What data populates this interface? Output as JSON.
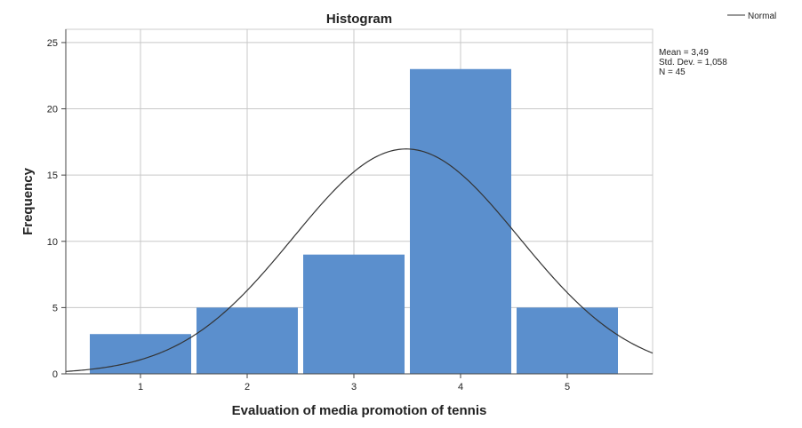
{
  "chart_data": {
    "type": "bar",
    "title": "Histogram",
    "xlabel": "Evaluation of media promotion of tennis",
    "ylabel": "Frequency",
    "categories": [
      "1",
      "2",
      "3",
      "4",
      "5"
    ],
    "x": [
      1,
      2,
      3,
      4,
      5
    ],
    "values": [
      3,
      5,
      9,
      23,
      5
    ],
    "xlim": [
      0.3,
      5.8
    ],
    "ylim": [
      0,
      26
    ],
    "yticks": [
      "0",
      "5",
      "10",
      "15",
      "20",
      "25"
    ],
    "ytick_values": [
      0,
      5,
      10,
      15,
      20,
      25
    ],
    "grid": true,
    "bar_color": "#5b8fcd",
    "curve_color": "#333333",
    "normal_curve": {
      "mean": 3.49,
      "std": 1.058,
      "n": 45,
      "bin_width": 1
    },
    "stats": {
      "mean_text": "Mean = 3,49",
      "std_text": "Std. Dev. = 1,058",
      "n_text": "N = 45"
    },
    "legend": {
      "position": "top-right",
      "entries": [
        {
          "name": "Normal"
        }
      ]
    }
  }
}
